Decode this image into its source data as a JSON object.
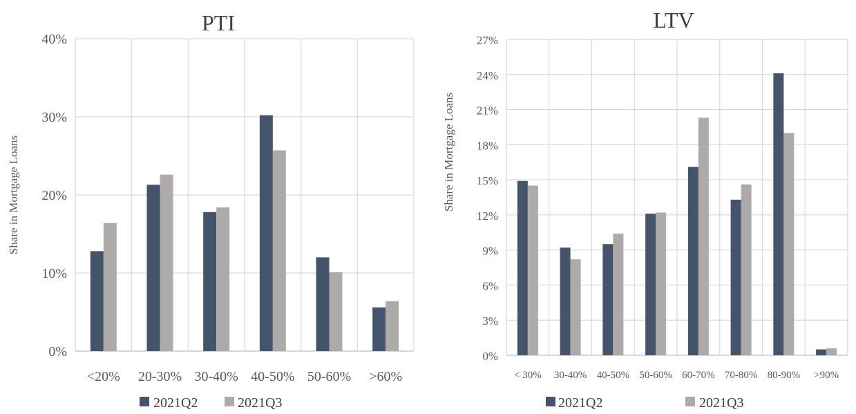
{
  "colors": {
    "series_q2": "#44546a",
    "series_q3": "#aeaaaa"
  },
  "chart_data": [
    {
      "type": "bar",
      "title": "PTI",
      "xlabel": "",
      "ylabel": "Share in Mortgage Loans",
      "ylim": [
        0,
        40
      ],
      "y_ticks": [
        "0%",
        "10%",
        "20%",
        "30%",
        "40%"
      ],
      "y_tick_values": [
        0,
        10,
        20,
        30,
        40
      ],
      "grid": true,
      "legend_position": "bottom",
      "categories": [
        "<20%",
        "20-30%",
        "30-40%",
        "40-50%",
        "50-60%",
        ">60%"
      ],
      "series": [
        {
          "name": "2021Q2",
          "values": [
            12.8,
            21.3,
            17.8,
            30.2,
            12.0,
            5.6
          ]
        },
        {
          "name": "2021Q3",
          "values": [
            16.4,
            22.6,
            18.4,
            25.7,
            10.1,
            6.4
          ]
        }
      ]
    },
    {
      "type": "bar",
      "title": "LTV",
      "xlabel": "",
      "ylabel": "Share in Mortgage Loans",
      "ylim": [
        0,
        27
      ],
      "y_ticks": [
        "0%",
        "3%",
        "6%",
        "9%",
        "12%",
        "15%",
        "18%",
        "21%",
        "24%",
        "27%"
      ],
      "y_tick_values": [
        0,
        3,
        6,
        9,
        12,
        15,
        18,
        21,
        24,
        27
      ],
      "grid": true,
      "legend_position": "bottom",
      "categories": [
        "< 30%",
        "30-40%",
        "40-50%",
        "50-60%",
        "60-70%",
        "70-80%",
        "80-90%",
        ">90%"
      ],
      "series": [
        {
          "name": "2021Q2",
          "values": [
            14.9,
            9.2,
            9.5,
            12.1,
            16.1,
            13.3,
            24.1,
            0.5
          ]
        },
        {
          "name": "2021Q3",
          "values": [
            14.5,
            8.2,
            10.4,
            12.2,
            20.3,
            14.6,
            19.0,
            0.6
          ]
        }
      ]
    }
  ]
}
